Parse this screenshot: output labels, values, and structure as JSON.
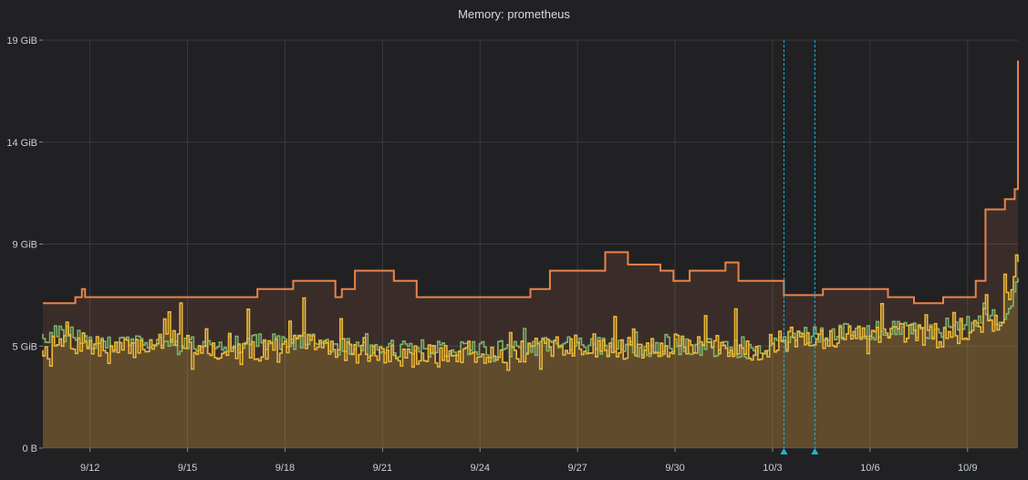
{
  "panel": {
    "title": "Memory: prometheus"
  },
  "colors": {
    "background": "#212124",
    "grid": "#3a3a3d",
    "series_max": "#e8834a",
    "series_a": "#eab839",
    "series_b": "#7eb26d",
    "annotation": "#1fb4d8"
  },
  "chart_data": {
    "type": "line",
    "title": "Memory: prometheus",
    "x_axis": {
      "type": "date",
      "range": [
        "2019-09-10",
        "2019-10-10"
      ],
      "ticks": [
        "9/12",
        "9/15",
        "9/18",
        "9/21",
        "9/24",
        "9/27",
        "9/30",
        "10/3",
        "10/6",
        "10/9"
      ],
      "tick_days": [
        2,
        5,
        8,
        11,
        14,
        17,
        20,
        23,
        26,
        29
      ]
    },
    "y_axis": {
      "unit": "GiB",
      "range": [
        0,
        19.5
      ],
      "ticks": [
        {
          "value": 0,
          "label": "0 B"
        },
        {
          "value": 5,
          "label": "5 GiB"
        },
        {
          "value": 10,
          "label": "9 GiB"
        },
        {
          "value": 15,
          "label": "14 GiB"
        },
        {
          "value": 20,
          "label": "19 GiB"
        }
      ]
    },
    "grid": true,
    "legend": "none",
    "annotations": [
      {
        "day": 22.8
      },
      {
        "day": 23.75
      }
    ],
    "series": [
      {
        "id": "max",
        "style": "step",
        "fill": true,
        "points": [
          [
            0,
            7.1
          ],
          [
            1.0,
            7.1
          ],
          [
            1.0,
            7.4
          ],
          [
            1.2,
            7.4
          ],
          [
            1.2,
            7.8
          ],
          [
            1.3,
            7.8
          ],
          [
            1.3,
            7.4
          ],
          [
            6.6,
            7.4
          ],
          [
            6.6,
            7.8
          ],
          [
            7.7,
            7.8
          ],
          [
            7.7,
            8.2
          ],
          [
            9.0,
            8.2
          ],
          [
            9.0,
            7.4
          ],
          [
            9.2,
            7.4
          ],
          [
            9.2,
            7.8
          ],
          [
            9.6,
            7.8
          ],
          [
            9.6,
            8.7
          ],
          [
            10.8,
            8.7
          ],
          [
            10.8,
            8.2
          ],
          [
            11.5,
            8.2
          ],
          [
            11.5,
            7.4
          ],
          [
            15.0,
            7.4
          ],
          [
            15.0,
            7.8
          ],
          [
            15.6,
            7.8
          ],
          [
            15.6,
            8.7
          ],
          [
            17.3,
            8.7
          ],
          [
            17.3,
            9.6
          ],
          [
            18.0,
            9.6
          ],
          [
            18.0,
            9.0
          ],
          [
            19.0,
            9.0
          ],
          [
            19.0,
            8.7
          ],
          [
            19.4,
            8.7
          ],
          [
            19.4,
            8.2
          ],
          [
            19.9,
            8.2
          ],
          [
            19.9,
            8.7
          ],
          [
            21.0,
            8.7
          ],
          [
            21.0,
            9.1
          ],
          [
            21.4,
            9.1
          ],
          [
            21.4,
            8.2
          ],
          [
            22.8,
            8.2
          ],
          [
            22.8,
            7.5
          ],
          [
            24.0,
            7.5
          ],
          [
            24.0,
            7.8
          ],
          [
            26.0,
            7.8
          ],
          [
            26.0,
            7.4
          ],
          [
            26.8,
            7.4
          ],
          [
            26.8,
            7.1
          ],
          [
            27.7,
            7.1
          ],
          [
            27.7,
            7.4
          ],
          [
            28.7,
            7.4
          ],
          [
            28.7,
            8.2
          ],
          [
            29.0,
            8.2
          ],
          [
            29.0,
            11.7
          ],
          [
            29.6,
            11.7
          ],
          [
            29.6,
            12.2
          ],
          [
            29.9,
            12.2
          ],
          [
            29.9,
            12.7
          ],
          [
            30.0,
            12.7
          ],
          [
            30.0,
            19.0
          ]
        ]
      },
      {
        "id": "a",
        "style": "noisy",
        "fill": true,
        "seed": 7,
        "base": [
          [
            0,
            4.8
          ],
          [
            1.0,
            5.3
          ],
          [
            2.0,
            4.7
          ],
          [
            4.0,
            5.3
          ],
          [
            6.0,
            4.6
          ],
          [
            8.0,
            5.2
          ],
          [
            10.0,
            4.6
          ],
          [
            12.0,
            4.5
          ],
          [
            14.0,
            4.6
          ],
          [
            16.0,
            5.0
          ],
          [
            18.0,
            4.9
          ],
          [
            20.0,
            5.1
          ],
          [
            22.0,
            4.8
          ],
          [
            23.0,
            5.4
          ],
          [
            24.0,
            5.4
          ],
          [
            26.0,
            5.6
          ],
          [
            28.0,
            5.6
          ],
          [
            29.0,
            6.0
          ],
          [
            29.5,
            6.3
          ],
          [
            30.0,
            9.5
          ]
        ],
        "noise": 1.1,
        "spike_prob": 0.12,
        "spike_amp": 2.6
      },
      {
        "id": "b",
        "style": "noisy",
        "fill": false,
        "seed": 31,
        "base": [
          [
            0,
            5.6
          ],
          [
            1.0,
            5.5
          ],
          [
            2.0,
            5.0
          ],
          [
            4.0,
            5.2
          ],
          [
            6.0,
            5.1
          ],
          [
            8.0,
            5.3
          ],
          [
            10.0,
            4.8
          ],
          [
            12.0,
            4.9
          ],
          [
            14.0,
            4.8
          ],
          [
            16.0,
            5.1
          ],
          [
            18.0,
            4.9
          ],
          [
            20.0,
            5.0
          ],
          [
            22.0,
            4.6
          ],
          [
            23.0,
            5.5
          ],
          [
            24.0,
            5.6
          ],
          [
            26.0,
            5.8
          ],
          [
            28.0,
            5.8
          ],
          [
            29.0,
            6.3
          ],
          [
            29.5,
            6.0
          ],
          [
            30.0,
            8.0
          ]
        ],
        "noise": 0.9,
        "spike_prob": 0.08,
        "spike_amp": 1.4
      }
    ]
  }
}
